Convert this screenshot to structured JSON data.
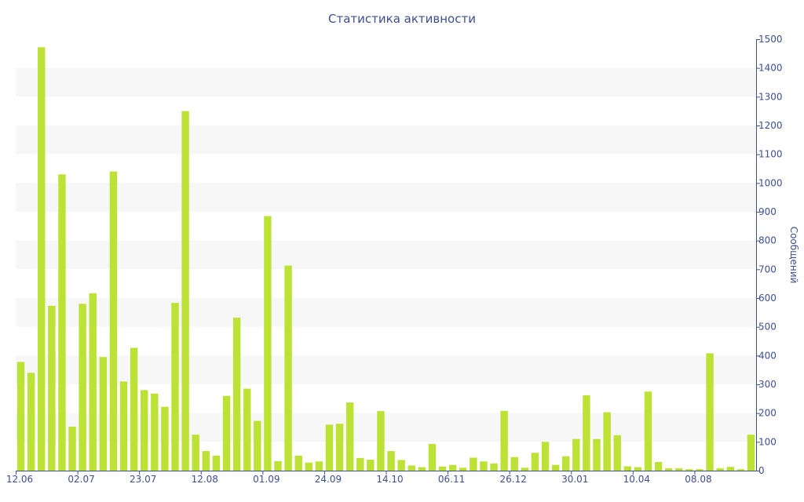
{
  "chart_data": {
    "type": "bar",
    "title": "Статистика активности",
    "xlabel": "",
    "ylabel": "Сообщений",
    "y_axis_side": "right",
    "ylim": [
      0,
      1500
    ],
    "y_ticks": [
      0,
      100,
      200,
      300,
      400,
      500,
      600,
      700,
      800,
      900,
      1000,
      1100,
      1200,
      1300,
      1400,
      1500
    ],
    "x_tick_labels": [
      {
        "label": "12.06",
        "index": 0
      },
      {
        "label": "02.07",
        "index": 6
      },
      {
        "label": "23.07",
        "index": 12
      },
      {
        "label": "12.08",
        "index": 18
      },
      {
        "label": "01.09",
        "index": 24
      },
      {
        "label": "24.09",
        "index": 30
      },
      {
        "label": "14.10",
        "index": 36
      },
      {
        "label": "06.11",
        "index": 42
      },
      {
        "label": "26.12",
        "index": 48
      },
      {
        "label": "30.01",
        "index": 54
      },
      {
        "label": "10.04",
        "index": 60
      },
      {
        "label": "08.08",
        "index": 66
      }
    ],
    "grid": "alternating horizontal bands",
    "bar_color": "#bce235",
    "band_color": "#f7f7f7",
    "text_color": "#3c4f8f",
    "values": [
      378,
      340,
      1472,
      573,
      1030,
      153,
      580,
      617,
      395,
      1040,
      310,
      427,
      280,
      268,
      222,
      583,
      1250,
      125,
      68,
      52,
      260,
      532,
      285,
      173,
      885,
      33,
      713,
      52,
      28,
      32,
      160,
      163,
      237,
      44,
      38,
      207,
      68,
      37,
      18,
      12,
      93,
      14,
      20,
      10,
      45,
      32,
      25,
      208,
      47,
      10,
      62,
      100,
      20,
      50,
      110,
      262,
      110,
      203,
      123,
      15,
      12,
      275,
      30,
      8,
      8,
      5,
      5,
      408,
      8,
      13,
      5,
      125
    ]
  }
}
